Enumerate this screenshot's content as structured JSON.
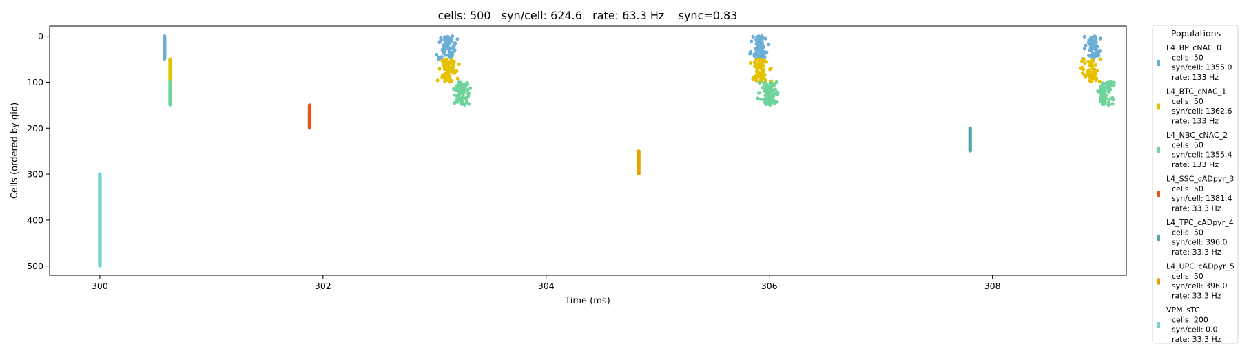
{
  "chart_data": {
    "type": "scatter",
    "title": "cells: 500   syn/cell: 624.6   rate: 63.3 Hz    sync=0.83",
    "xlabel": "Time (ms)",
    "ylabel": "Cells (ordered by gid)",
    "xlim": [
      299.55,
      309.2
    ],
    "ylim": [
      520,
      -22
    ],
    "y_inverted": true,
    "x_ticks": [
      300,
      302,
      304,
      306,
      308
    ],
    "x_tick_labels": [
      "300",
      "302",
      "304",
      "306",
      "308"
    ],
    "y_ticks": [
      0,
      100,
      200,
      300,
      400,
      500
    ],
    "y_tick_labels": [
      "0",
      "100",
      "200",
      "300",
      "400",
      "500"
    ],
    "grid": false,
    "legend": {
      "title": "Populations",
      "placement": "outside-right"
    },
    "series": [
      {
        "name": "L4_BP_cNAC_0",
        "color": "#6baed6",
        "legend_lines": [
          "L4_BP_cNAC_0",
          "cells: 50",
          "syn/cell: 1355.0",
          "rate: 133 Hz"
        ],
        "gid_range": [
          0,
          49
        ],
        "events": [
          {
            "t": 300.58,
            "jitter": 0.0
          },
          {
            "t": 303.12,
            "jitter": 0.14
          },
          {
            "t": 305.92,
            "jitter": 0.13
          },
          {
            "t": 308.9,
            "jitter": 0.13
          }
        ]
      },
      {
        "name": "L4_BTC_cNAC_1",
        "color": "#e6c100",
        "legend_lines": [
          "L4_BTC_cNAC_1",
          "cells: 50",
          "syn/cell: 1362.6",
          "rate: 133 Hz"
        ],
        "gid_range": [
          50,
          99
        ],
        "events": [
          {
            "t": 300.63,
            "jitter": 0.0
          },
          {
            "t": 303.12,
            "jitter": 0.15
          },
          {
            "t": 305.92,
            "jitter": 0.13
          },
          {
            "t": 308.88,
            "jitter": 0.14
          }
        ]
      },
      {
        "name": "L4_NBC_cNAC_2",
        "color": "#6fd49b",
        "legend_lines": [
          "L4_NBC_cNAC_2",
          "cells: 50",
          "syn/cell: 1355.4",
          "rate: 133 Hz"
        ],
        "gid_range": [
          100,
          149
        ],
        "events": [
          {
            "t": 300.63,
            "jitter": 0.0
          },
          {
            "t": 303.25,
            "jitter": 0.16
          },
          {
            "t": 306.0,
            "jitter": 0.14
          },
          {
            "t": 309.02,
            "jitter": 0.13
          }
        ]
      },
      {
        "name": "L4_SSC_cADpyr_3",
        "color": "#e6550d",
        "legend_lines": [
          "L4_SSC_cADpyr_3",
          "cells: 50",
          "syn/cell: 1381.4",
          "rate: 33.3 Hz"
        ],
        "gid_range": [
          150,
          199
        ],
        "events": [
          {
            "t": 301.88,
            "jitter": 0.0
          }
        ]
      },
      {
        "name": "L4_TPC_cADpyr_4",
        "color": "#52a7a7",
        "legend_lines": [
          "L4_TPC_cADpyr_4",
          "cells: 50",
          "syn/cell: 396.0",
          "rate: 33.3 Hz"
        ],
        "gid_range": [
          200,
          249
        ],
        "events": [
          {
            "t": 307.8,
            "jitter": 0.0
          }
        ]
      },
      {
        "name": "L4_UPC_cADpyr_5",
        "color": "#e6a000",
        "legend_lines": [
          "L4_UPC_cADpyr_5",
          "cells: 50",
          "syn/cell: 396.0",
          "rate: 33.3 Hz"
        ],
        "gid_range": [
          250,
          299
        ],
        "events": [
          {
            "t": 304.83,
            "jitter": 0.0
          }
        ]
      },
      {
        "name": "VPM_sTC",
        "color": "#6fd3d3",
        "legend_lines": [
          "VPM_sTC",
          "cells: 200",
          "syn/cell: 0.0",
          "rate: 33.3 Hz"
        ],
        "gid_range": [
          300,
          499
        ],
        "events": [
          {
            "t": 300.0,
            "jitter": 0.0
          }
        ]
      }
    ]
  }
}
